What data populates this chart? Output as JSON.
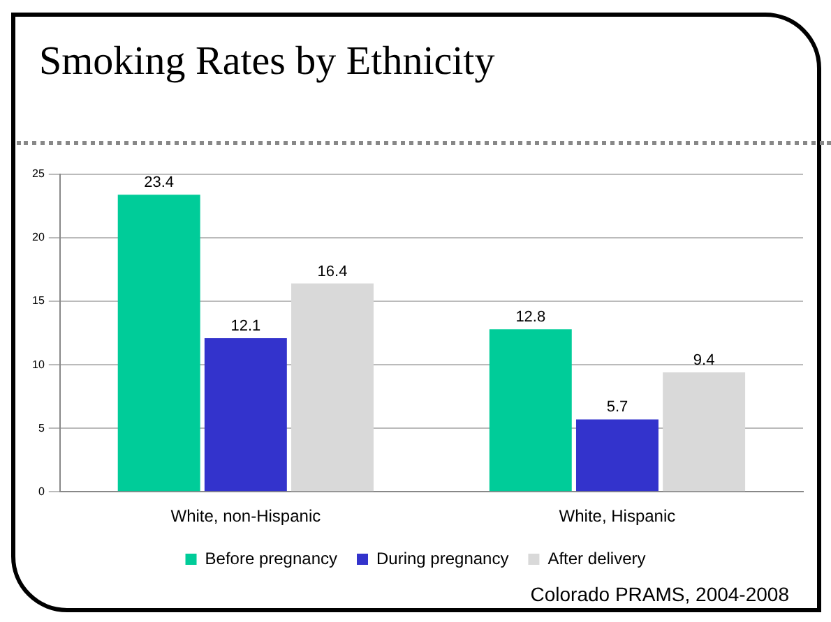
{
  "chart_data": {
    "type": "bar",
    "title": "Smoking Rates by Ethnicity",
    "categories": [
      "White, non-Hispanic",
      "White, Hispanic"
    ],
    "series": [
      {
        "name": "Before pregnancy",
        "color": "#00cc99",
        "values": [
          23.4,
          12.8
        ]
      },
      {
        "name": "During pregnancy",
        "color": "#3333cc",
        "values": [
          12.1,
          5.7
        ]
      },
      {
        "name": "After delivery",
        "color": "#d9d9d9",
        "values": [
          16.4,
          9.4
        ]
      }
    ],
    "ylim": [
      0,
      25
    ],
    "yticks": [
      0,
      5,
      10,
      15,
      20,
      25
    ],
    "grid": "y",
    "legend": "bottom",
    "data_labels": true,
    "annotations": [
      "Colorado PRAMS, 2004-2008"
    ]
  }
}
